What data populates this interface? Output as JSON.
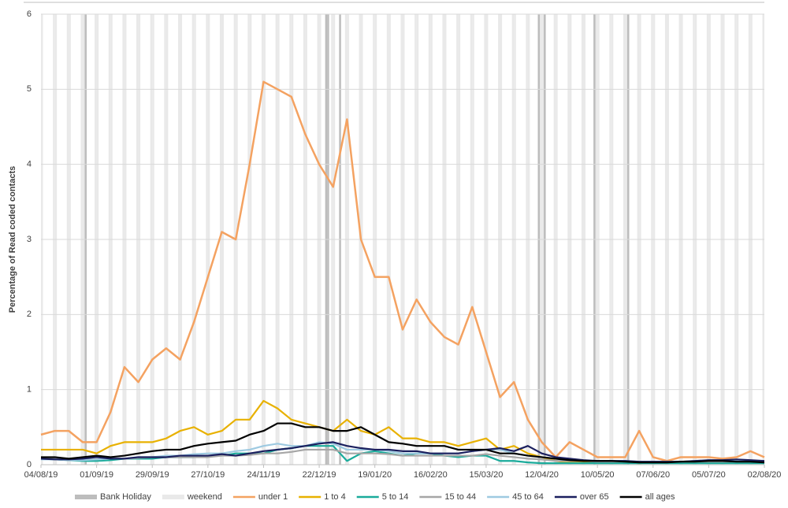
{
  "chart_data": {
    "type": "line",
    "y_label": "Percentage of Read coded contacts",
    "x": [
      "04/08/19",
      "11/08/19",
      "18/08/19",
      "25/08/19",
      "01/09/19",
      "08/09/19",
      "15/09/19",
      "22/09/19",
      "29/09/19",
      "06/10/19",
      "13/10/19",
      "20/10/19",
      "27/10/19",
      "03/11/19",
      "10/11/19",
      "17/11/19",
      "24/11/19",
      "01/12/19",
      "08/12/19",
      "15/12/19",
      "22/12/19",
      "29/12/19",
      "05/01/20",
      "12/01/20",
      "19/01/20",
      "26/01/20",
      "02/02/20",
      "09/02/20",
      "16/02/20",
      "23/02/20",
      "01/03/20",
      "08/03/20",
      "15/03/20",
      "22/03/20",
      "29/03/20",
      "05/04/20",
      "12/04/20",
      "19/04/20",
      "26/04/20",
      "03/05/20",
      "10/05/20",
      "17/05/20",
      "24/05/20",
      "31/05/20",
      "07/06/20",
      "14/06/20",
      "21/06/20",
      "28/06/20",
      "05/07/20",
      "12/07/20",
      "19/07/20",
      "26/07/20",
      "02/08/20"
    ],
    "xlim": [
      "04/08/19",
      "02/08/20"
    ],
    "xticks": [
      "04/08/19",
      "01/09/19",
      "29/09/19",
      "27/10/19",
      "24/11/19",
      "22/12/19",
      "19/01/20",
      "16/02/20",
      "15/03/20",
      "12/04/20",
      "10/05/20",
      "07/06/20",
      "05/07/20",
      "02/08/20"
    ],
    "ylim": [
      0,
      6
    ],
    "yticks": [
      0,
      1,
      2,
      3,
      4,
      5,
      6
    ],
    "grid": true,
    "legend": "bottom",
    "bands": [
      {
        "name": "Bank Holiday",
        "color": "#bdbdbd",
        "dates": [
          "26/08/19",
          "25/12/19",
          "26/12/19",
          "01/01/20",
          "10/04/20",
          "13/04/20",
          "08/05/20",
          "25/05/20"
        ]
      },
      {
        "name": "weekend",
        "color": "#e9e9e9"
      }
    ],
    "series": [
      {
        "name": "under 1",
        "color": "#f4a261",
        "values": [
          0.4,
          0.45,
          0.45,
          0.3,
          0.3,
          0.7,
          1.3,
          1.1,
          1.4,
          1.55,
          1.4,
          1.9,
          2.5,
          3.1,
          3.0,
          4.0,
          5.1,
          5.0,
          4.9,
          4.4,
          4.0,
          3.7,
          4.6,
          3.0,
          2.5,
          2.5,
          1.8,
          2.2,
          1.9,
          1.7,
          1.6,
          2.1,
          1.5,
          0.9,
          1.1,
          0.6,
          0.3,
          0.1,
          0.3,
          0.2,
          0.1,
          0.1,
          0.1,
          0.45,
          0.1,
          0.05,
          0.1,
          0.1,
          0.1,
          0.08,
          0.1,
          0.18,
          0.1
        ]
      },
      {
        "name": "1 to 4",
        "color": "#e8b100",
        "values": [
          0.2,
          0.2,
          0.2,
          0.2,
          0.15,
          0.25,
          0.3,
          0.3,
          0.3,
          0.35,
          0.45,
          0.5,
          0.4,
          0.45,
          0.6,
          0.6,
          0.85,
          0.75,
          0.6,
          0.55,
          0.5,
          0.45,
          0.6,
          0.45,
          0.4,
          0.5,
          0.35,
          0.35,
          0.3,
          0.3,
          0.25,
          0.3,
          0.35,
          0.2,
          0.25,
          0.15,
          0.1,
          0.05,
          0.03,
          0.03,
          0.03,
          0.03,
          0.03,
          0.02,
          0.03,
          0.04,
          0.04,
          0.05,
          0.05,
          0.05,
          0.05,
          0.05,
          0.05
        ]
      },
      {
        "name": "5 to 14",
        "color": "#1aab9b",
        "values": [
          0.08,
          0.07,
          0.06,
          0.05,
          0.05,
          0.06,
          0.08,
          0.08,
          0.08,
          0.1,
          0.1,
          0.1,
          0.12,
          0.12,
          0.15,
          0.15,
          0.15,
          0.2,
          0.22,
          0.25,
          0.25,
          0.25,
          0.05,
          0.15,
          0.18,
          0.15,
          0.12,
          0.15,
          0.15,
          0.12,
          0.1,
          0.12,
          0.12,
          0.05,
          0.05,
          0.03,
          0.02,
          0.02,
          0.02,
          0.02,
          0.02,
          0.02,
          0.02,
          0.02,
          0.02,
          0.02,
          0.02,
          0.02,
          0.02,
          0.02,
          0.02,
          0.02,
          0.02
        ]
      },
      {
        "name": "15 to 44",
        "color": "#a6a6a6",
        "values": [
          0.08,
          0.08,
          0.07,
          0.07,
          0.07,
          0.08,
          0.08,
          0.09,
          0.1,
          0.1,
          0.1,
          0.1,
          0.1,
          0.12,
          0.12,
          0.13,
          0.15,
          0.15,
          0.17,
          0.2,
          0.2,
          0.2,
          0.15,
          0.15,
          0.15,
          0.14,
          0.12,
          0.12,
          0.12,
          0.12,
          0.12,
          0.12,
          0.14,
          0.12,
          0.1,
          0.08,
          0.07,
          0.05,
          0.05,
          0.05,
          0.04,
          0.04,
          0.04,
          0.04,
          0.04,
          0.04,
          0.04,
          0.04,
          0.04,
          0.04,
          0.04,
          0.04,
          0.04
        ]
      },
      {
        "name": "45 to 64",
        "color": "#9ecae1",
        "values": [
          0.07,
          0.07,
          0.06,
          0.06,
          0.07,
          0.08,
          0.08,
          0.1,
          0.1,
          0.12,
          0.12,
          0.14,
          0.15,
          0.15,
          0.18,
          0.2,
          0.25,
          0.28,
          0.25,
          0.25,
          0.3,
          0.28,
          0.2,
          0.2,
          0.2,
          0.18,
          0.15,
          0.15,
          0.15,
          0.15,
          0.15,
          0.18,
          0.2,
          0.2,
          0.15,
          0.12,
          0.1,
          0.08,
          0.06,
          0.05,
          0.05,
          0.05,
          0.05,
          0.04,
          0.04,
          0.04,
          0.04,
          0.05,
          0.05,
          0.05,
          0.05,
          0.05,
          0.04
        ]
      },
      {
        "name": "over 65",
        "color": "#1b1f5e",
        "values": [
          0.08,
          0.07,
          0.07,
          0.08,
          0.1,
          0.08,
          0.08,
          0.1,
          0.1,
          0.1,
          0.12,
          0.12,
          0.12,
          0.14,
          0.12,
          0.15,
          0.18,
          0.2,
          0.22,
          0.25,
          0.28,
          0.3,
          0.25,
          0.22,
          0.2,
          0.2,
          0.18,
          0.18,
          0.15,
          0.15,
          0.15,
          0.18,
          0.2,
          0.22,
          0.18,
          0.25,
          0.15,
          0.1,
          0.08,
          0.06,
          0.05,
          0.05,
          0.05,
          0.04,
          0.04,
          0.04,
          0.04,
          0.05,
          0.06,
          0.06,
          0.07,
          0.06,
          0.05
        ]
      },
      {
        "name": "all ages",
        "color": "#000000",
        "values": [
          0.1,
          0.1,
          0.08,
          0.1,
          0.12,
          0.1,
          0.12,
          0.15,
          0.18,
          0.2,
          0.2,
          0.25,
          0.28,
          0.3,
          0.32,
          0.4,
          0.45,
          0.55,
          0.55,
          0.5,
          0.5,
          0.45,
          0.45,
          0.5,
          0.4,
          0.3,
          0.28,
          0.25,
          0.25,
          0.25,
          0.2,
          0.2,
          0.2,
          0.15,
          0.15,
          0.12,
          0.1,
          0.08,
          0.06,
          0.05,
          0.05,
          0.05,
          0.04,
          0.03,
          0.03,
          0.03,
          0.04,
          0.04,
          0.05,
          0.05,
          0.04,
          0.04,
          0.03
        ]
      }
    ]
  }
}
